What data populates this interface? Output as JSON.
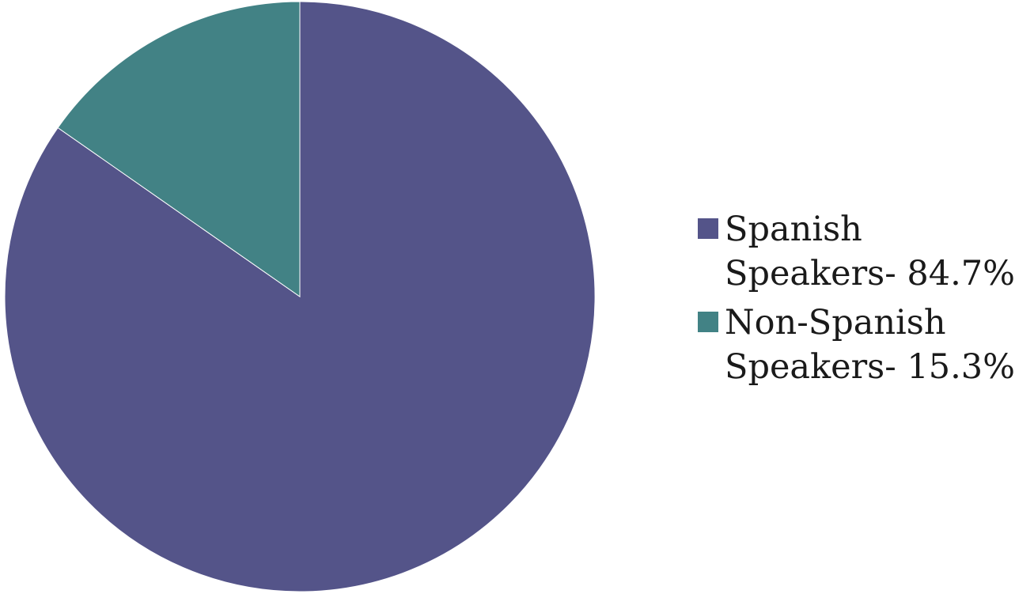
{
  "chart_data": {
    "type": "pie",
    "slices": [
      {
        "label": "Spanish Speakers- 84.7%",
        "value": 84.7,
        "color": "#545489"
      },
      {
        "label": "Non-Spanish Speakers- 15.3%",
        "value": 15.3,
        "color": "#428285"
      }
    ],
    "title": "",
    "legend_position": "right"
  }
}
